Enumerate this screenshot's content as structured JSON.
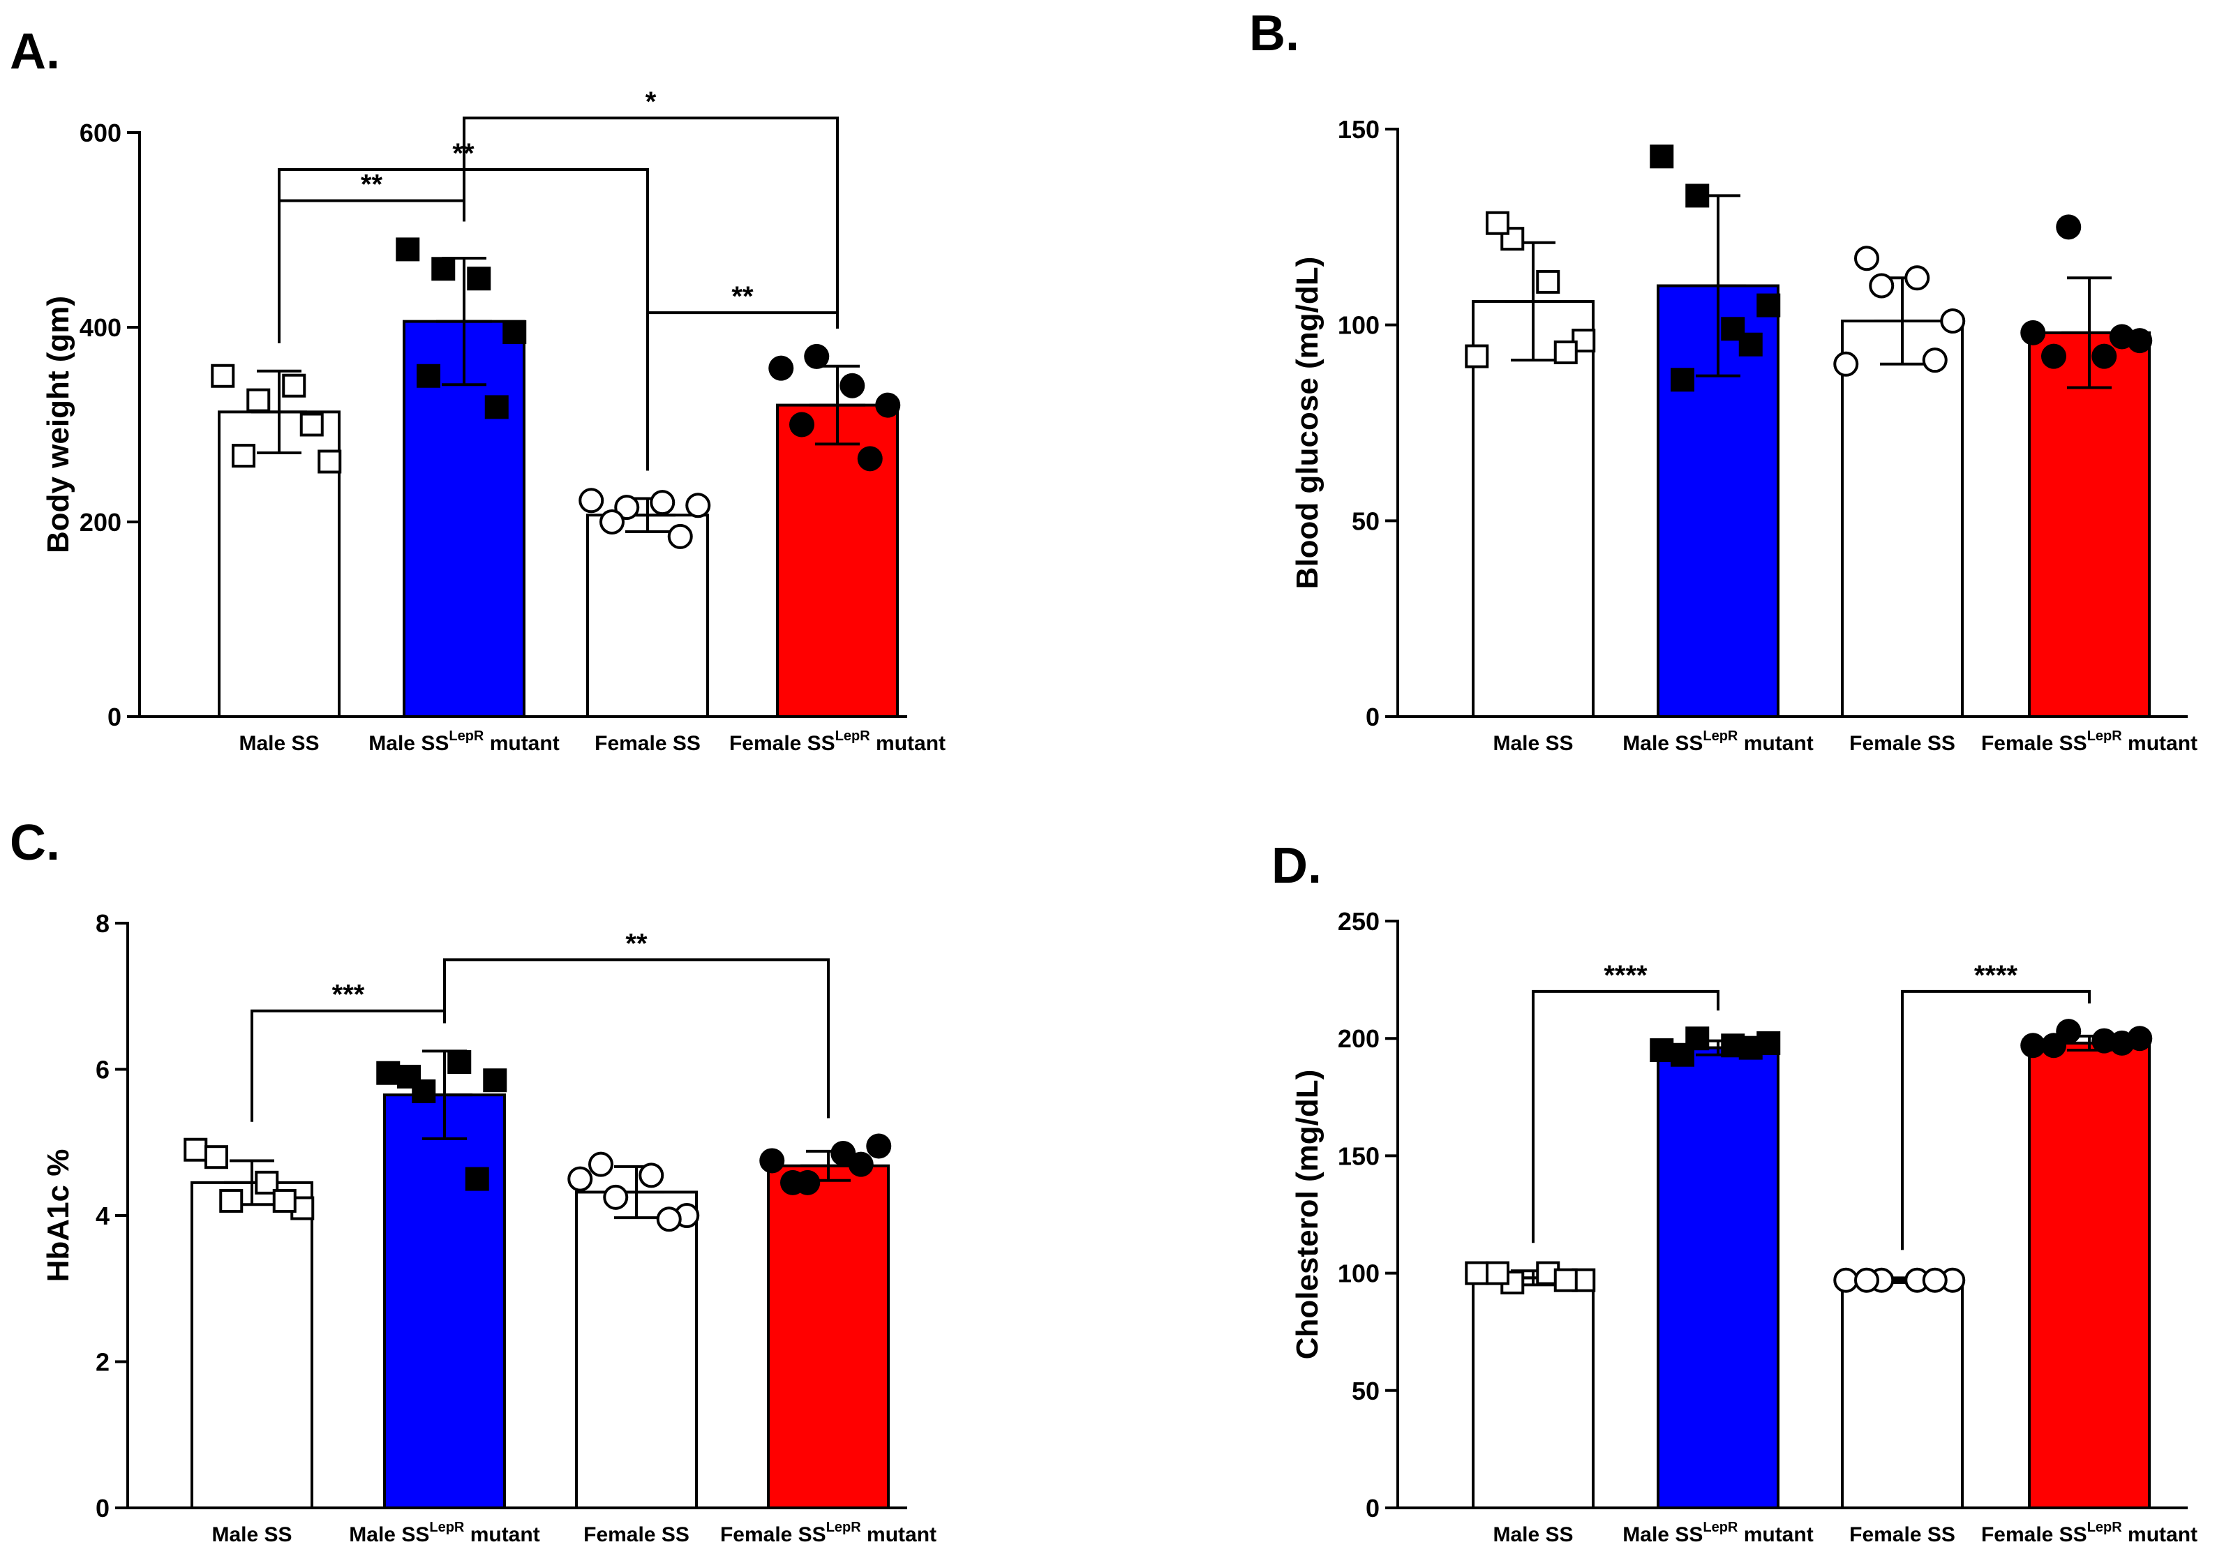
{
  "colors": {
    "white_bar": "#ffffff",
    "blue_bar": "#0000ff",
    "red_bar": "#ff0000",
    "outline": "#000000"
  },
  "categories": [
    {
      "main": "Male SS",
      "sup": "",
      "suffix": ""
    },
    {
      "main": "Male SS",
      "sup": "LepR",
      "suffix": " mutant"
    },
    {
      "main": "Female SS",
      "sup": "",
      "suffix": ""
    },
    {
      "main": "Female SS",
      "sup": "LepR",
      "suffix": " mutant"
    }
  ],
  "chart_data": [
    {
      "panel": "A.",
      "type": "bar",
      "ylabel": "Body weight (gm)",
      "ylim": [
        0,
        600
      ],
      "yticks": [
        0,
        200,
        400,
        600
      ],
      "series": [
        {
          "name": "",
          "fill": "white",
          "marker": "square-open",
          "mean": 313,
          "sd": 42,
          "points": [
            350,
            325,
            340,
            262,
            268,
            300
          ]
        },
        {
          "name": "",
          "fill": "blue",
          "marker": "square-filled",
          "mean": 406,
          "sd": 65,
          "points": [
            480,
            460,
            450,
            395,
            350,
            318
          ]
        },
        {
          "name": "",
          "fill": "white",
          "marker": "circle-open",
          "mean": 207,
          "sd": 17,
          "points": [
            222,
            215,
            220,
            217,
            200,
            185
          ]
        },
        {
          "name": "",
          "fill": "red",
          "marker": "circle-filled",
          "mean": 320,
          "sd": 40,
          "points": [
            358,
            370,
            340,
            320,
            300,
            265
          ]
        }
      ],
      "significance": [
        {
          "from": 0,
          "to": 1,
          "label": "**",
          "level": 530
        },
        {
          "from": 0,
          "to": 2,
          "label": "**",
          "level": 562
        },
        {
          "from": 1,
          "to": 3,
          "label": "*",
          "level": 615
        },
        {
          "from": 2,
          "to": 3,
          "label": "**",
          "level": 415
        }
      ]
    },
    {
      "panel": "B.",
      "type": "bar",
      "ylabel": "Blood glucose (mg/dL)",
      "ylim": [
        0,
        160
      ],
      "yticks": [
        0,
        50,
        100,
        150
      ],
      "series": [
        {
          "name": "",
          "fill": "white",
          "marker": "square-open",
          "mean": 106,
          "sd": 15,
          "points": [
            92,
            122,
            111,
            96,
            126,
            93
          ]
        },
        {
          "name": "",
          "fill": "blue",
          "marker": "square-filled",
          "mean": 110,
          "sd": 23,
          "points": [
            143,
            133,
            99,
            105,
            86,
            95
          ]
        },
        {
          "name": "",
          "fill": "white",
          "marker": "circle-open",
          "mean": 101,
          "sd": 11,
          "points": [
            90,
            110,
            112,
            101,
            117,
            91
          ]
        },
        {
          "name": "",
          "fill": "red",
          "marker": "circle-filled",
          "mean": 98,
          "sd": 14,
          "points": [
            98,
            125,
            92,
            96,
            92,
            97
          ]
        }
      ],
      "significance": []
    },
    {
      "panel": "C.",
      "type": "bar",
      "ylabel": "HbA1c %",
      "ylim": [
        0,
        8
      ],
      "yticks": [
        0,
        2,
        4,
        6,
        8
      ],
      "series": [
        {
          "name": "",
          "fill": "white",
          "marker": "square-open",
          "mean": 4.45,
          "sd": 0.3,
          "points": [
            4.9,
            4.2,
            4.45,
            4.1,
            4.8,
            4.2
          ]
        },
        {
          "name": "",
          "fill": "blue",
          "marker": "square-filled",
          "mean": 5.65,
          "sd": 0.6,
          "points": [
            5.95,
            5.7,
            6.1,
            5.85,
            5.9,
            4.5
          ]
        },
        {
          "name": "",
          "fill": "white",
          "marker": "circle-open",
          "mean": 4.32,
          "sd": 0.35,
          "points": [
            4.5,
            4.25,
            4.55,
            4.0,
            4.7,
            3.95
          ]
        },
        {
          "name": "",
          "fill": "red",
          "marker": "circle-filled",
          "mean": 4.68,
          "sd": 0.2,
          "points": [
            4.75,
            4.45,
            4.85,
            4.95,
            4.45,
            4.7
          ]
        }
      ],
      "significance": [
        {
          "from": 0,
          "to": 1,
          "label": "***",
          "level": 6.8
        },
        {
          "from": 1,
          "to": 3,
          "label": "**",
          "level": 7.5
        }
      ]
    },
    {
      "panel": "D.",
      "type": "bar",
      "ylabel": "Cholesterol (mg/dL)",
      "ylim": [
        0,
        250
      ],
      "yticks": [
        0,
        50,
        100,
        150,
        200,
        250
      ],
      "series": [
        {
          "name": "",
          "fill": "white",
          "marker": "square-open",
          "mean": 98,
          "sd": 3,
          "points": [
            100,
            96,
            100,
            97,
            100,
            97
          ]
        },
        {
          "name": "",
          "fill": "blue",
          "marker": "square-filled",
          "mean": 196,
          "sd": 3,
          "points": [
            195,
            200,
            197,
            198,
            193,
            196
          ]
        },
        {
          "name": "",
          "fill": "white",
          "marker": "circle-open",
          "mean": 97,
          "sd": 1,
          "points": [
            97,
            97,
            97,
            97,
            97,
            97
          ]
        },
        {
          "name": "",
          "fill": "red",
          "marker": "circle-filled",
          "mean": 198,
          "sd": 3,
          "points": [
            197,
            203,
            199,
            200,
            197,
            198
          ]
        }
      ],
      "significance": [
        {
          "from": 0,
          "to": 1,
          "label": "****",
          "level": 220
        },
        {
          "from": 2,
          "to": 3,
          "label": "****",
          "level": 220
        }
      ]
    }
  ]
}
